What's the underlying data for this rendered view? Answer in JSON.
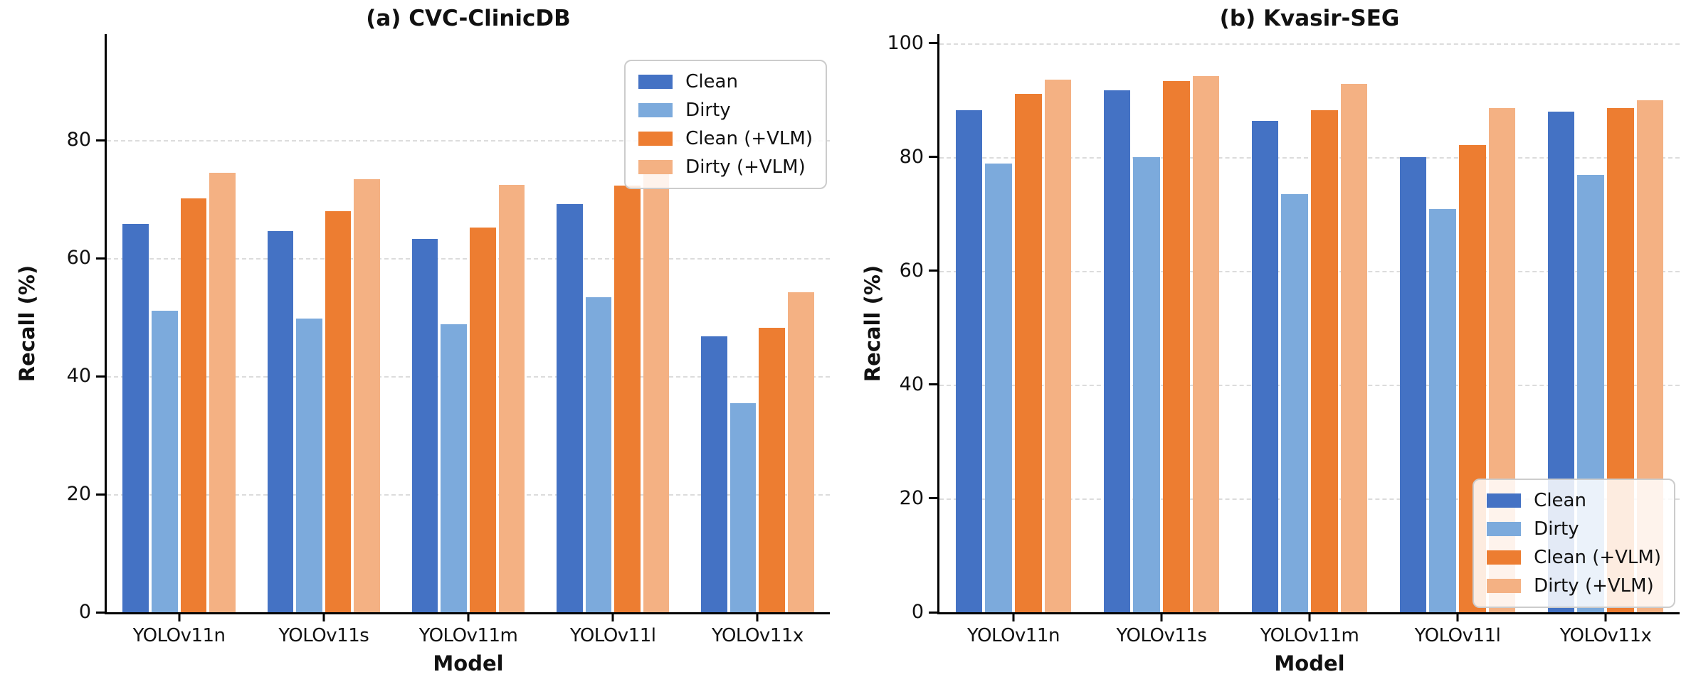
{
  "figure": {
    "background": "#ffffff",
    "axis_color": "#000000",
    "gridline_color": "#dcdcdc"
  },
  "legend": {
    "entries": [
      "Clean",
      "Dirty",
      "Clean (+VLM)",
      "Dirty (+VLM)"
    ]
  },
  "chart_data": [
    {
      "type": "bar",
      "title": "(a) CVC-ClinicDB",
      "xlabel": "Model",
      "ylabel": "Recall (%)",
      "categories": [
        "YOLOv11n",
        "YOLOv11s",
        "YOLOv11m",
        "YOLOv11l",
        "YOLOv11x"
      ],
      "series": [
        {
          "name": "Clean",
          "color": "#4472c4",
          "values": [
            65.8,
            64.6,
            63.3,
            69.2,
            46.8
          ]
        },
        {
          "name": "Dirty",
          "color": "#7caadc",
          "values": [
            51.1,
            49.8,
            48.8,
            53.4,
            35.4
          ]
        },
        {
          "name": "Clean (+VLM)",
          "color": "#ed7d31",
          "values": [
            70.2,
            68.0,
            65.2,
            72.3,
            48.2
          ]
        },
        {
          "name": "Dirty (+VLM)",
          "color": "#f4b183",
          "values": [
            74.5,
            73.4,
            72.4,
            75.2,
            54.3
          ]
        }
      ],
      "yticks": [
        0,
        20,
        40,
        60,
        80
      ],
      "ylim": [
        0,
        98
      ],
      "grid": true,
      "legend_position": "upper right"
    },
    {
      "type": "bar",
      "title": "(b) Kvasir-SEG",
      "xlabel": "Model",
      "ylabel": "Recall (%)",
      "categories": [
        "YOLOv11n",
        "YOLOv11s",
        "YOLOv11m",
        "YOLOv11l",
        "YOLOv11x"
      ],
      "series": [
        {
          "name": "Clean",
          "color": "#4472c4",
          "values": [
            88.2,
            91.7,
            86.3,
            80.0,
            88.0
          ]
        },
        {
          "name": "Dirty",
          "color": "#7caadc",
          "values": [
            78.9,
            80.0,
            73.5,
            70.9,
            76.9
          ]
        },
        {
          "name": "Clean (+VLM)",
          "color": "#ed7d31",
          "values": [
            91.1,
            93.4,
            88.2,
            82.1,
            88.6
          ]
        },
        {
          "name": "Dirty (+VLM)",
          "color": "#f4b183",
          "values": [
            93.6,
            94.2,
            92.8,
            88.6,
            90.0
          ]
        }
      ],
      "yticks": [
        0,
        20,
        40,
        60,
        80,
        100
      ],
      "ylim": [
        0,
        101.6
      ],
      "grid": true,
      "legend_position": "lower right"
    }
  ]
}
